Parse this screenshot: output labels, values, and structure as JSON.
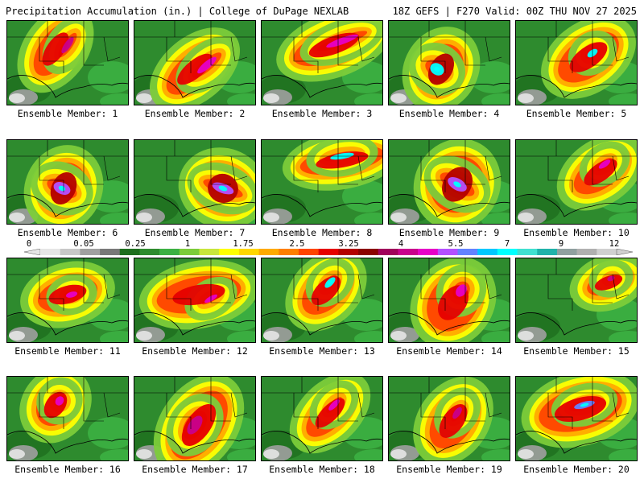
{
  "header": {
    "title_left": "Precipitation Accumulation (in.) | College of DuPage NEXLAB",
    "title_right": "18Z GEFS | F270 Valid: 00Z THU NOV 27 2025"
  },
  "members": [
    {
      "label": "Ensemble Member: 1"
    },
    {
      "label": "Ensemble Member: 2"
    },
    {
      "label": "Ensemble Member: 3"
    },
    {
      "label": "Ensemble Member: 4"
    },
    {
      "label": "Ensemble Member: 5"
    },
    {
      "label": "Ensemble Member: 6"
    },
    {
      "label": "Ensemble Member: 7"
    },
    {
      "label": "Ensemble Member: 8"
    },
    {
      "label": "Ensemble Member: 9"
    },
    {
      "label": "Ensemble Member: 10"
    },
    {
      "label": "Ensemble Member: 11"
    },
    {
      "label": "Ensemble Member: 12"
    },
    {
      "label": "Ensemble Member: 13"
    },
    {
      "label": "Ensemble Member: 14"
    },
    {
      "label": "Ensemble Member: 15"
    },
    {
      "label": "Ensemble Member: 16"
    },
    {
      "label": "Ensemble Member: 17"
    },
    {
      "label": "Ensemble Member: 18"
    },
    {
      "label": "Ensemble Member: 19"
    },
    {
      "label": "Ensemble Member: 20"
    }
  ],
  "colorbar": {
    "labels": [
      "0",
      "0.05",
      "0.25",
      "1",
      "1.75",
      "2.5",
      "3.25",
      "4",
      "5.5",
      "7",
      "9",
      "12"
    ],
    "colors": [
      "#e6e6e6",
      "#c8c8c8",
      "#a0a0a0",
      "#787878",
      "#1e6e1e",
      "#2e8b2e",
      "#3cb043",
      "#7ccc3a",
      "#c8e63c",
      "#ffff00",
      "#ffd700",
      "#ffaa00",
      "#ff7f00",
      "#ff4500",
      "#e60000",
      "#b40000",
      "#8b0000",
      "#a0005a",
      "#c8008c",
      "#e600c8",
      "#b450ff",
      "#6482ff",
      "#00c8ff",
      "#00ffff",
      "#40e0d0",
      "#20b2aa",
      "#90a0a0",
      "#b0b0b0",
      "#d0d0d0"
    ]
  }
}
